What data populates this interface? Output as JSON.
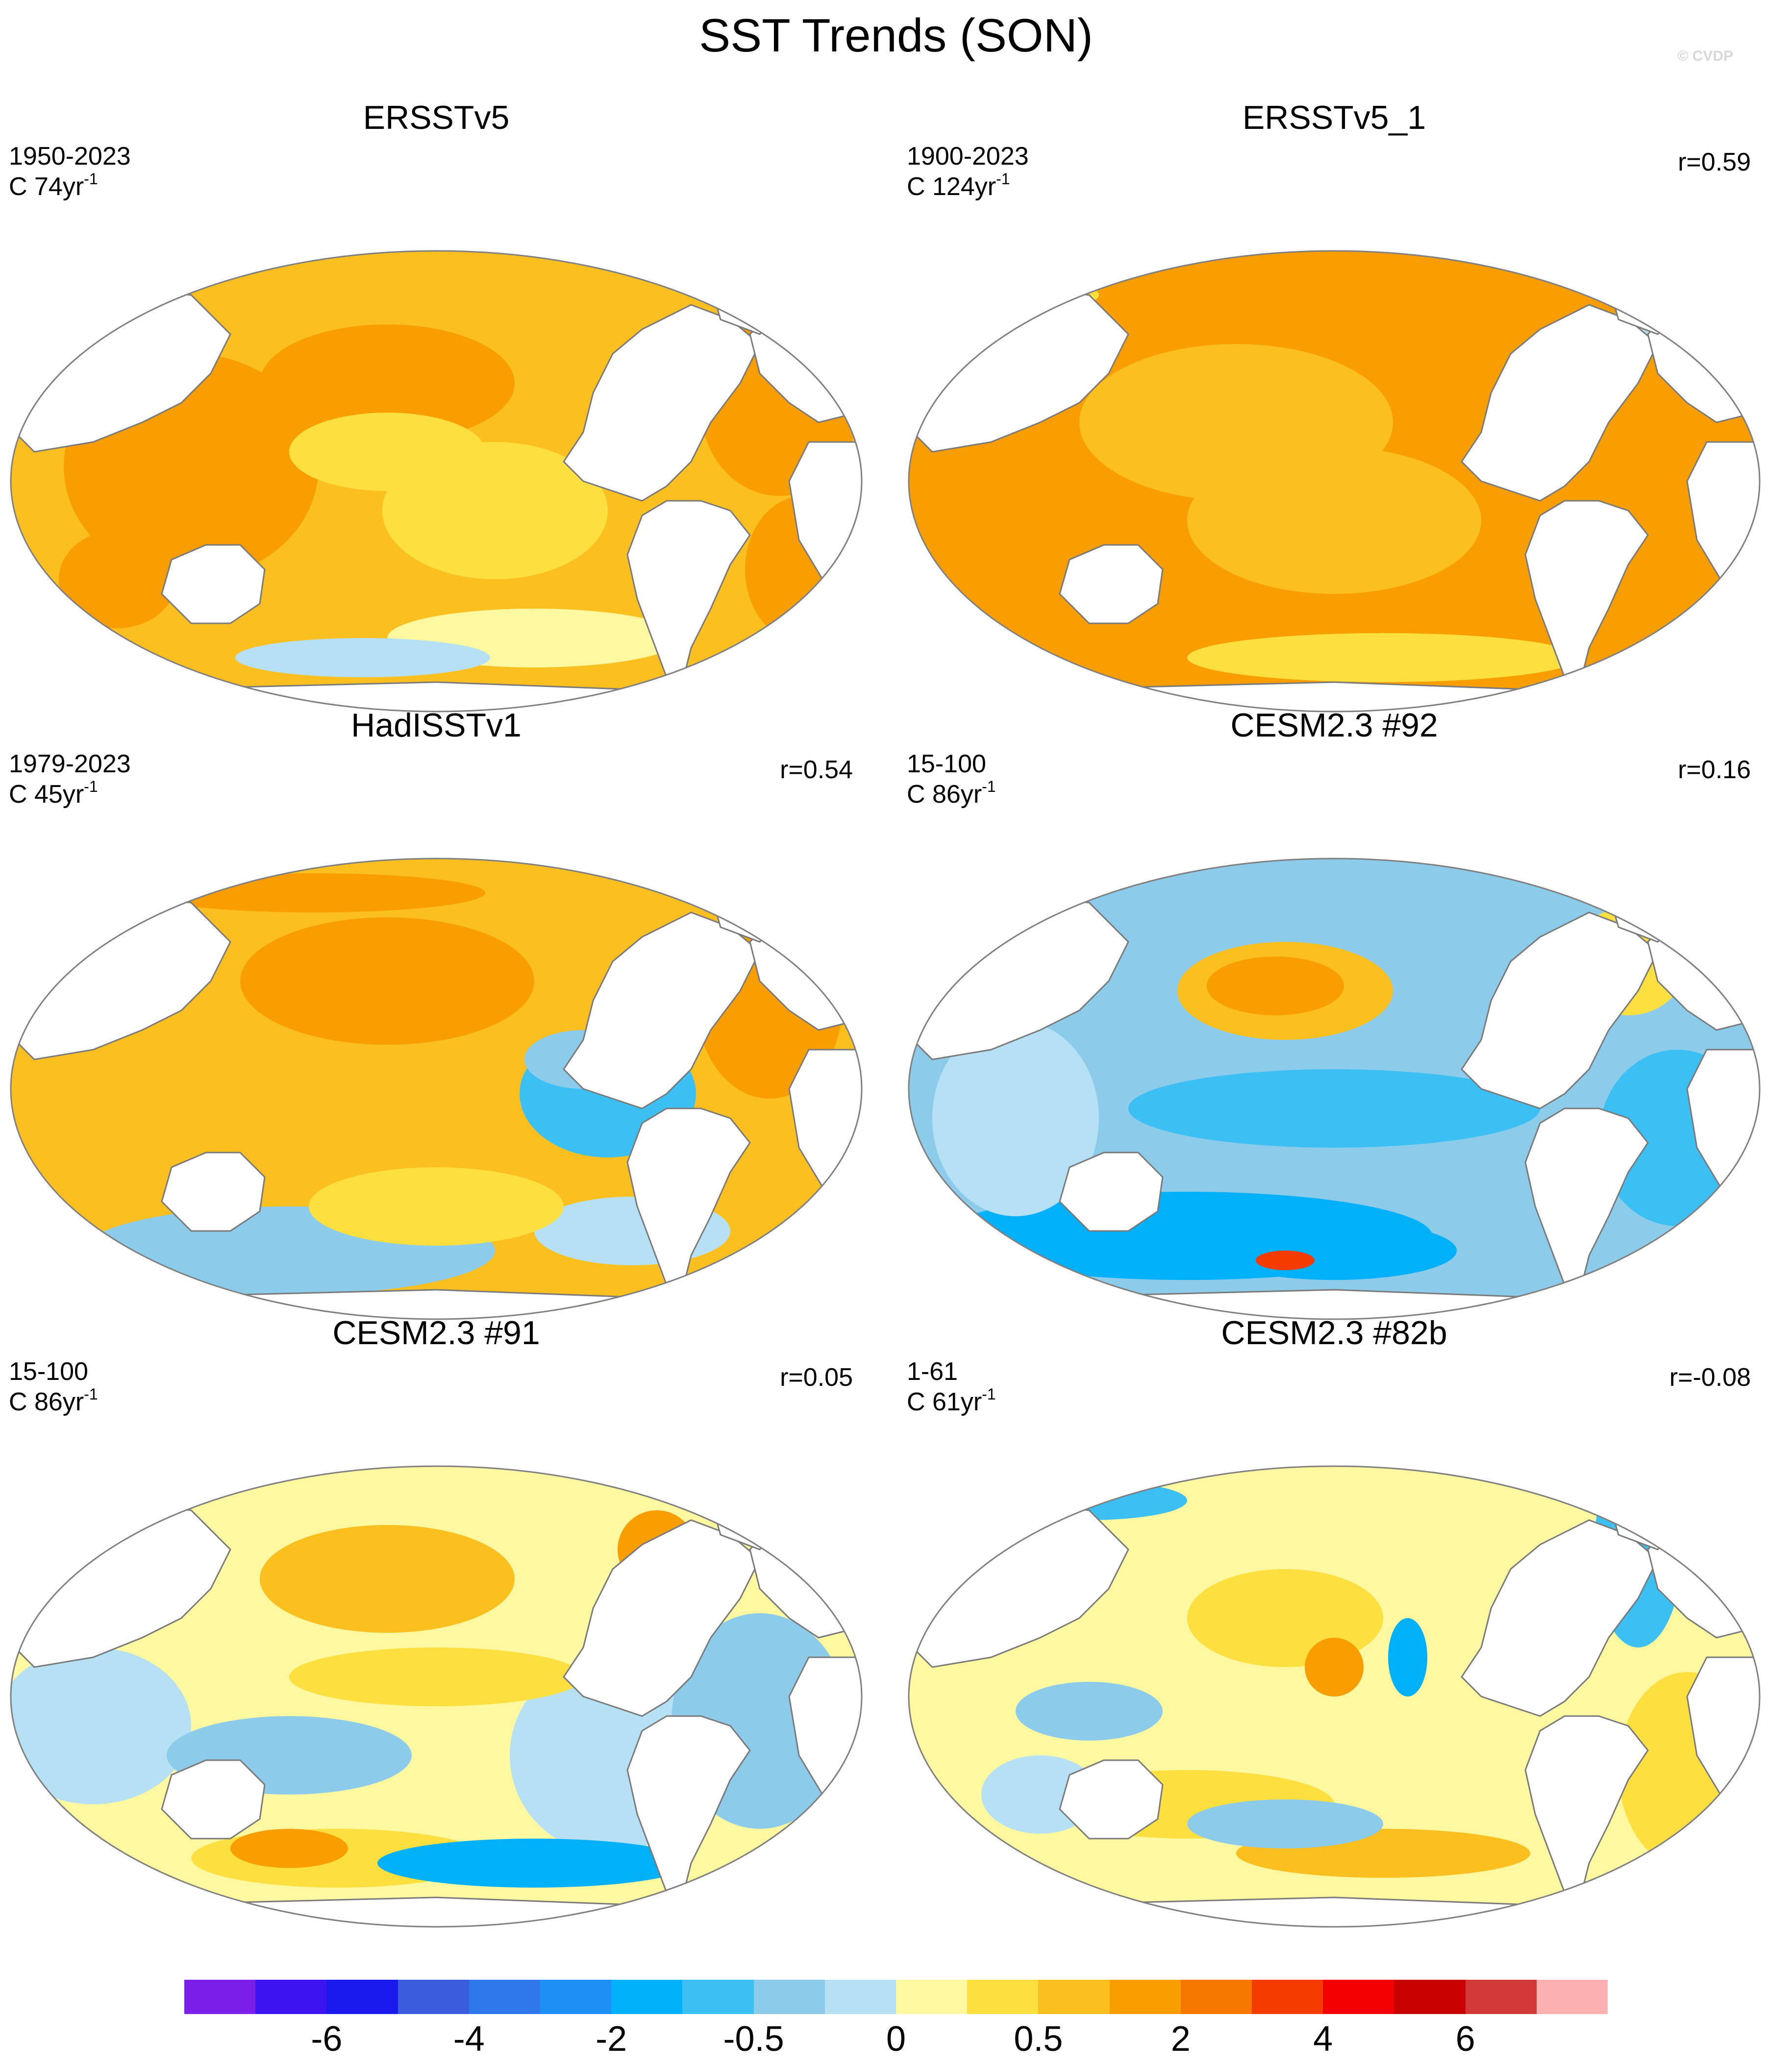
{
  "title": "SST Trends (SON)",
  "copyright": "© CVDP",
  "panels": [
    {
      "title": "ERSSTv5",
      "period": "1950-2023",
      "info_prefix": "C 74yr",
      "info_exp": "-1",
      "r": "",
      "scheme": "warm"
    },
    {
      "title": "ERSSTv5_1",
      "period": "1900-2023",
      "info_prefix": "C 124yr",
      "info_exp": "-1",
      "r": "r=0.59",
      "scheme": "warm2"
    },
    {
      "title": "HadISSTv1",
      "period": "1979-2023",
      "info_prefix": "C 45yr",
      "info_exp": "-1",
      "r": "r=0.54",
      "scheme": "mixed_warm"
    },
    {
      "title": "CESM2.3 #92",
      "period": "15-100",
      "info_prefix": "C 86yr",
      "info_exp": "-1",
      "r": "r=0.16",
      "scheme": "cool"
    },
    {
      "title": "CESM2.3 #91",
      "period": "15-100",
      "info_prefix": "C 86yr",
      "info_exp": "-1",
      "r": "r=0.05",
      "scheme": "mixed"
    },
    {
      "title": "CESM2.3 #82b",
      "period": "1-61",
      "info_prefix": "C 61yr",
      "info_exp": "-1",
      "r": "r=-0.08",
      "scheme": "mixed2"
    }
  ],
  "colorbar": {
    "colors": [
      "#7a1ee8",
      "#3c14f0",
      "#1a1aee",
      "#3a5cdc",
      "#2f78ec",
      "#1e90f5",
      "#00b0f8",
      "#3cc0f4",
      "#8ccbea",
      "#b6e1f4",
      "#fff8a0",
      "#fde040",
      "#fbc020",
      "#f99e00",
      "#f67800",
      "#f43c00",
      "#f20000",
      "#c80000",
      "#d23a3a",
      "#fcb0b0"
    ],
    "labels": [
      "-6",
      "-4",
      "-2",
      "-0.5",
      "0",
      "0.5",
      "2",
      "4",
      "6"
    ]
  },
  "legend_colors": {
    "land": "#ffffff",
    "coast": "#7a7a7a"
  }
}
